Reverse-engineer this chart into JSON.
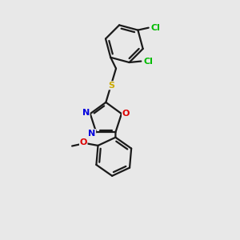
{
  "background_color": "#e8e8e8",
  "bond_color": "#1a1a1a",
  "N_color": "#0000dd",
  "O_color": "#dd0000",
  "S_color": "#ccaa00",
  "Cl_color": "#00bb00",
  "figsize": [
    3.0,
    3.0
  ],
  "dpi": 100,
  "xlim": [
    0,
    10
  ],
  "ylim": [
    0,
    10
  ]
}
